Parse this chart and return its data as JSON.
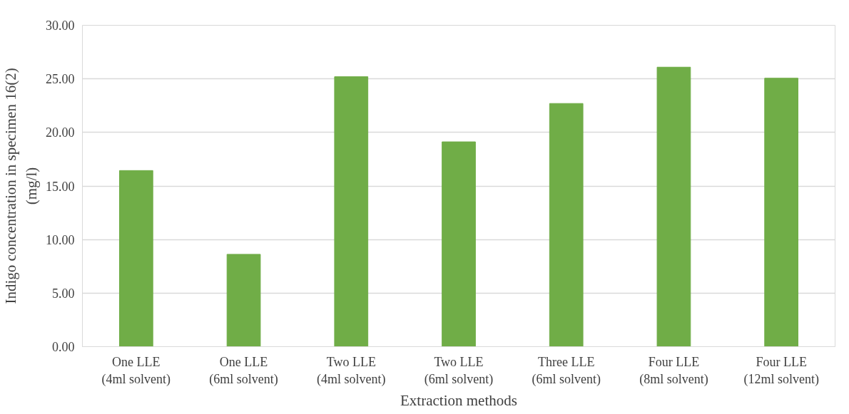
{
  "chart_data": {
    "type": "bar",
    "xlabel": "Extraction methods",
    "ylabel": "Indigo concentration in specimen 16(2)\n(mg/l)",
    "categories": [
      "One LLE\n(4ml solvent)",
      "One LLE\n(6ml solvent)",
      "Two LLE\n(4ml solvent)",
      "Two LLE\n(6ml solvent)",
      "Three LLE\n(6ml solvent)",
      "Four LLE\n(8ml solvent)",
      "Four LLE\n(12ml solvent)"
    ],
    "values": [
      16.44,
      8.62,
      25.2,
      19.12,
      22.7,
      26.09,
      25.06
    ],
    "color": "#70ad47",
    "ylim": [
      0,
      30
    ],
    "yticks": [
      {
        "value": 0,
        "label": "0.00"
      },
      {
        "value": 5,
        "label": "5.00"
      },
      {
        "value": 10,
        "label": "10.00"
      },
      {
        "value": 15,
        "label": "15.00"
      },
      {
        "value": 20,
        "label": "20.00"
      },
      {
        "value": 25,
        "label": "25.00"
      },
      {
        "value": 30,
        "label": "30.00"
      }
    ],
    "grid": "y"
  }
}
